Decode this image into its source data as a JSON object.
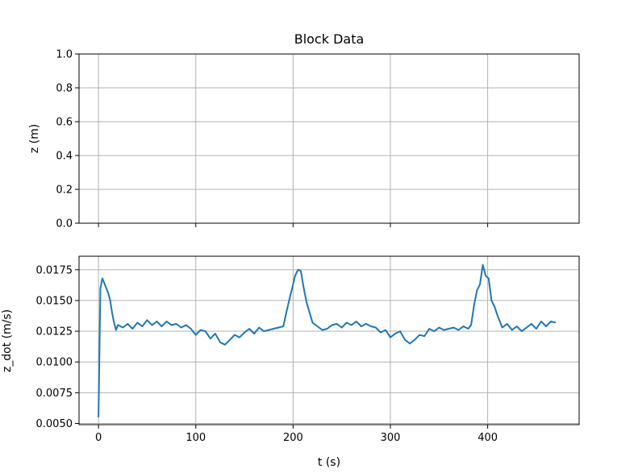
{
  "chart_data": [
    {
      "type": "line",
      "title": "Block Data",
      "xlabel": "",
      "ylabel": "z (m)",
      "xlim": [
        -20,
        494
      ],
      "ylim": [
        0.0,
        1.0
      ],
      "xticks": [
        0,
        100,
        200,
        300,
        400
      ],
      "xticklabels_visible": false,
      "yticks": [
        0.0,
        0.2,
        0.4,
        0.6,
        0.8,
        1.0
      ],
      "yticklabels": [
        "0.0",
        "0.2",
        "0.4",
        "0.6",
        "0.8",
        "1.0"
      ],
      "grid": true,
      "series": [
        {
          "x": [],
          "y": []
        }
      ]
    },
    {
      "type": "line",
      "title": "",
      "xlabel": "t (s)",
      "ylabel": "z_dot (m/s)",
      "xlim": [
        -20,
        494
      ],
      "ylim": [
        0.0049,
        0.0186
      ],
      "xticks": [
        0,
        100,
        200,
        300,
        400
      ],
      "xticklabels": [
        "0",
        "100",
        "200",
        "300",
        "400"
      ],
      "yticks": [
        0.005,
        0.0075,
        0.01,
        0.0125,
        0.015,
        0.0175
      ],
      "yticklabels": [
        "0.0050",
        "0.0075",
        "0.0100",
        "0.0125",
        "0.0150",
        "0.0175"
      ],
      "grid": true,
      "series": [
        {
          "color": "#1f77b4",
          "x": [
            0,
            2,
            4,
            6,
            8,
            10,
            12,
            14,
            16,
            18,
            20,
            25,
            30,
            35,
            40,
            45,
            50,
            55,
            60,
            65,
            70,
            75,
            80,
            85,
            90,
            95,
            100,
            105,
            110,
            115,
            120,
            125,
            130,
            135,
            140,
            145,
            150,
            155,
            160,
            165,
            170,
            175,
            180,
            185,
            190,
            193,
            196,
            199,
            202,
            205,
            208,
            211,
            214,
            217,
            220,
            225,
            230,
            235,
            240,
            245,
            250,
            255,
            260,
            265,
            270,
            275,
            280,
            285,
            290,
            295,
            300,
            305,
            310,
            315,
            320,
            325,
            330,
            335,
            340,
            345,
            350,
            355,
            360,
            365,
            370,
            375,
            380,
            383,
            386,
            389,
            392,
            395,
            398,
            401,
            404,
            407,
            410,
            415,
            420,
            425,
            430,
            435,
            440,
            445,
            450,
            455,
            460,
            465,
            470
          ],
          "y": [
            0.0055,
            0.016,
            0.0168,
            0.0164,
            0.016,
            0.0156,
            0.015,
            0.014,
            0.0132,
            0.0126,
            0.013,
            0.0128,
            0.0131,
            0.0127,
            0.0132,
            0.0129,
            0.0134,
            0.013,
            0.0133,
            0.0129,
            0.0133,
            0.013,
            0.0131,
            0.0128,
            0.013,
            0.0127,
            0.0122,
            0.0126,
            0.0125,
            0.0119,
            0.0123,
            0.0116,
            0.0114,
            0.0118,
            0.0122,
            0.012,
            0.0124,
            0.0127,
            0.0123,
            0.0128,
            0.0125,
            0.0126,
            0.0127,
            0.0128,
            0.0129,
            0.014,
            0.015,
            0.016,
            0.017,
            0.0175,
            0.0174,
            0.016,
            0.0148,
            0.014,
            0.0132,
            0.0129,
            0.0126,
            0.0127,
            0.013,
            0.0131,
            0.0128,
            0.0132,
            0.013,
            0.0133,
            0.0129,
            0.0131,
            0.0129,
            0.0128,
            0.0124,
            0.0126,
            0.012,
            0.0123,
            0.0125,
            0.0118,
            0.0115,
            0.0118,
            0.0122,
            0.0121,
            0.0127,
            0.0125,
            0.0128,
            0.0126,
            0.0127,
            0.0128,
            0.0126,
            0.0129,
            0.0127,
            0.013,
            0.0146,
            0.0158,
            0.0163,
            0.0179,
            0.017,
            0.0168,
            0.015,
            0.0145,
            0.0138,
            0.0128,
            0.0131,
            0.0126,
            0.0129,
            0.0125,
            0.0128,
            0.0131,
            0.0127,
            0.0133,
            0.0129,
            0.0133,
            0.0132
          ]
        }
      ]
    }
  ]
}
